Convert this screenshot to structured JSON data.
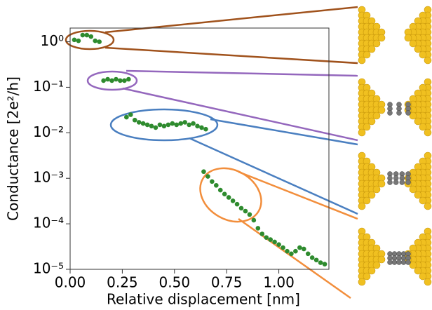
{
  "chart_data": {
    "type": "scatter",
    "x_label": "Relative displacement [nm]",
    "y_label": "Conductance [2e²/h]",
    "xlim": [
      0,
      1.24
    ],
    "ylim": [
      1e-05,
      2
    ],
    "log_y": true,
    "xticks": [
      {
        "value": 0,
        "label": "0.00"
      },
      0.25,
      {
        "value": 0.5,
        "label": "0.50"
      },
      0.75,
      {
        "value": 1,
        "label": "1.00"
      }
    ],
    "yticks": [
      {
        "value": 1,
        "label": "10⁰"
      },
      {
        "value": 0.1,
        "label": "10⁻¹"
      },
      {
        "value": 0.01,
        "label": "10⁻²"
      },
      {
        "value": 0.001,
        "label": "10⁻³"
      },
      {
        "value": 0.0001,
        "label": "10⁻⁴"
      },
      {
        "value": 1e-05,
        "label": "10⁻⁵"
      }
    ],
    "series": [
      {
        "color": "#2e8b2e",
        "x": [
          0.02,
          0.04,
          0.06,
          0.08,
          0.1,
          0.12,
          0.14,
          0.16,
          0.18,
          0.2,
          0.22,
          0.24,
          0.26,
          0.28,
          0.27,
          0.29,
          0.31,
          0.33,
          0.35,
          0.37,
          0.39,
          0.41,
          0.43,
          0.45,
          0.47,
          0.49,
          0.51,
          0.53,
          0.55,
          0.57,
          0.59,
          0.61,
          0.63,
          0.65,
          0.64,
          0.66,
          0.68,
          0.7,
          0.72,
          0.74,
          0.76,
          0.78,
          0.8,
          0.82,
          0.84,
          0.86,
          0.88,
          0.9,
          0.92,
          0.94,
          0.96,
          0.98,
          1.0,
          1.02,
          1.04,
          1.06,
          1.08,
          1.1,
          1.12,
          1.14,
          1.16,
          1.18,
          1.2,
          1.22
        ],
        "values": [
          1.1,
          1.05,
          1.4,
          1.4,
          1.3,
          1.05,
          1.0,
          0.14,
          0.15,
          0.14,
          0.15,
          0.14,
          0.14,
          0.15,
          0.022,
          0.025,
          0.019,
          0.017,
          0.016,
          0.015,
          0.014,
          0.013,
          0.015,
          0.014,
          0.015,
          0.016,
          0.015,
          0.016,
          0.017,
          0.015,
          0.016,
          0.014,
          0.013,
          0.012,
          0.0014,
          0.0011,
          0.00085,
          0.0007,
          0.00055,
          0.00045,
          0.00038,
          0.00032,
          0.00027,
          0.00022,
          0.00019,
          0.00016,
          0.00012,
          8e-05,
          6e-05,
          5e-05,
          4.5e-05,
          4e-05,
          3.5e-05,
          3e-05,
          2.5e-05,
          2.2e-05,
          2.5e-05,
          3e-05,
          2.8e-05,
          2.2e-05,
          1.8e-05,
          1.6e-05,
          1.4e-05,
          1.3e-05
        ]
      }
    ]
  }
}
